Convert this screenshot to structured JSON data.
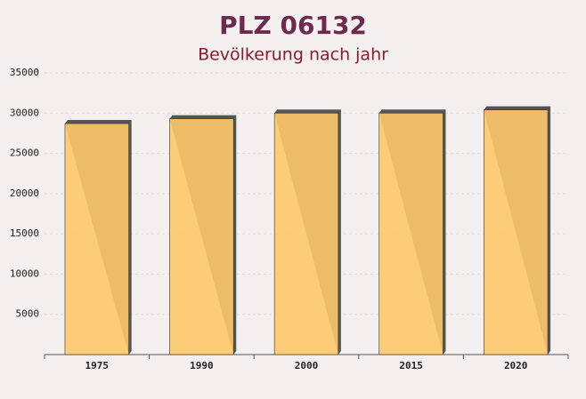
{
  "chart_data": {
    "type": "bar",
    "title": "PLZ 06132",
    "subtitle": "Bevölkerung nach jahr",
    "categories": [
      "1975",
      "1990",
      "2000",
      "2015",
      "2020"
    ],
    "values": [
      28700,
      29300,
      30000,
      30000,
      30400
    ],
    "color": "#fdc86a",
    "ylim": [
      0,
      35000
    ],
    "yticks": [
      5000,
      10000,
      15000,
      20000,
      25000,
      30000,
      35000
    ],
    "grid": true
  }
}
